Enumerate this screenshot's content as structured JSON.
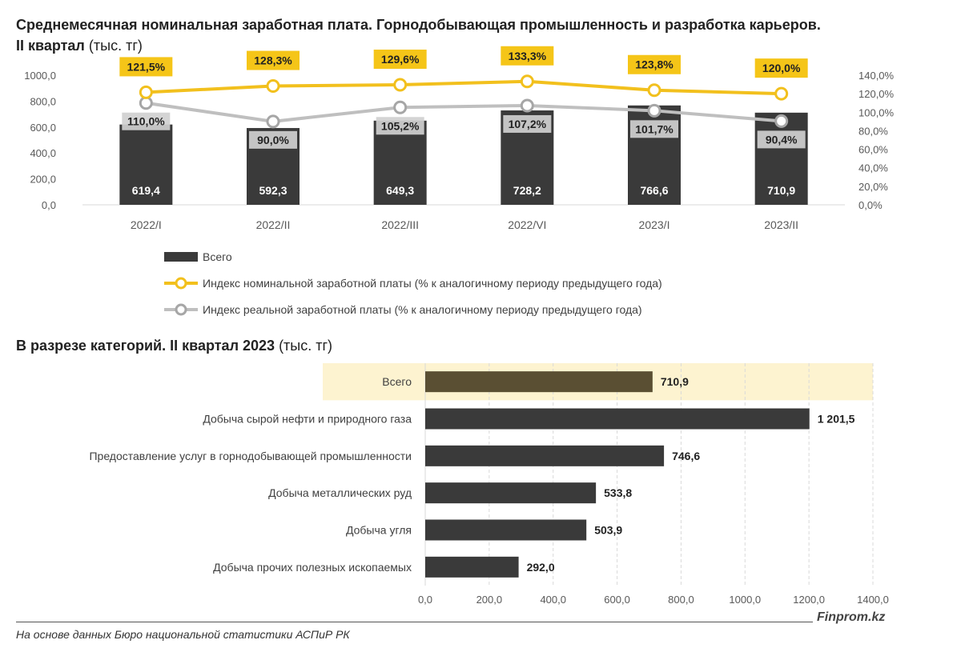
{
  "titles": {
    "chart1_bold": "Среднемесячная номинальная заработная плата. Горнодобывающая промышленность и разработка карьеров.",
    "chart1_bold2": "II квартал",
    "chart1_unit": "(тыс. тг)",
    "chart2_bold": "В разрезе категорий. II квартал 2023",
    "chart2_unit": "(тыс. тг)"
  },
  "source": "На основе данных Бюро национальной статистики АСПиР РК",
  "brand": "Finprom.kz",
  "colors": {
    "bar": "#3a3a3a",
    "nominal": "#f2c01d",
    "nominal_label_bg": "#f5c518",
    "real": "#bfbfbf",
    "total_bar": "#5a4f33",
    "total_band": "#fdf3d0"
  },
  "chart_data": [
    {
      "type": "bar",
      "categories": [
        "2022/I",
        "2022/II",
        "2022/III",
        "2022/VI",
        "2023/I",
        "2023/II"
      ],
      "y_ticks": [
        "0,0",
        "200,0",
        "400,0",
        "600,0",
        "800,0",
        "1000,0"
      ],
      "y2_ticks": [
        "0,0%",
        "20,0%",
        "40,0%",
        "60,0%",
        "80,0%",
        "100,0%",
        "120,0%",
        "140,0%"
      ],
      "ylim": [
        0,
        1000
      ],
      "y2lim": [
        0,
        140
      ],
      "series": [
        {
          "name": "Всего",
          "kind": "bar",
          "values": [
            619.4,
            592.3,
            649.3,
            728.2,
            766.6,
            710.9
          ],
          "labels": [
            "619,4",
            "592,3",
            "649,3",
            "728,2",
            "766,6",
            "710,9"
          ]
        },
        {
          "name": "Индекс номинальной заработной платы (% к аналогичному периоду предыдущего года)",
          "kind": "line",
          "axis": "y2",
          "values": [
            121.5,
            128.3,
            129.6,
            133.3,
            123.8,
            120.0
          ],
          "labels": [
            "121,5%",
            "128,3%",
            "129,6%",
            "133,3%",
            "123,8%",
            "120,0%"
          ]
        },
        {
          "name": "Индекс реальной заработной платы (% к аналогичному периоду предыдущего года)",
          "kind": "line",
          "axis": "y2",
          "values": [
            110.0,
            90.0,
            105.2,
            107.2,
            101.7,
            90.4
          ],
          "labels": [
            "110,0%",
            "90,0%",
            "105,2%",
            "107,2%",
            "101,7%",
            "90,4%"
          ]
        }
      ],
      "legend_position": "bottom"
    },
    {
      "type": "bar",
      "orientation": "horizontal",
      "categories": [
        "Всего",
        "Добыча сырой нефти и природного газа",
        "Предоставление услуг в горнодобывающей промышленности",
        "Добыча металлических руд",
        "Добыча угля",
        "Добыча прочих полезных ископаемых"
      ],
      "values": [
        710.9,
        1201.5,
        746.6,
        533.8,
        503.9,
        292.0
      ],
      "labels": [
        "710,9",
        "1 201,5",
        "746,6",
        "533,8",
        "503,9",
        "292,0"
      ],
      "x_ticks": [
        "0,0",
        "200,0",
        "400,0",
        "600,0",
        "800,0",
        "1000,0",
        "1200,0",
        "1400,0"
      ],
      "xlim": [
        0,
        1400
      ],
      "grid": true
    }
  ]
}
